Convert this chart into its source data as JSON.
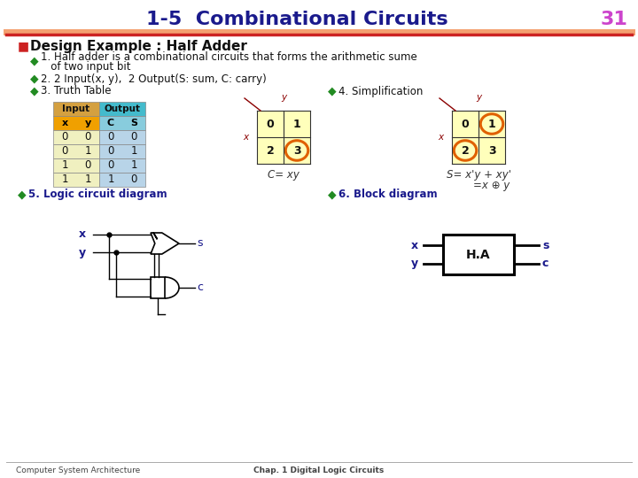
{
  "title": "1-5  Combinational Circuits",
  "page_num": "31",
  "title_color": "#1a1a8c",
  "page_num_color": "#cc44cc",
  "bg_color": "#ffffff",
  "bullet_color": "#228B22",
  "bullet_char": "◆",
  "section_bullet_color": "#cc2222",
  "section_title": "Design Example : Half Adder",
  "footer_left": "Computer System Architecture",
  "footer_right": "Chap. 1 Digital Logic Circuits",
  "footer_color": "#444444",
  "sep_color1": "#f4a070",
  "sep_color2": "#cc2222"
}
